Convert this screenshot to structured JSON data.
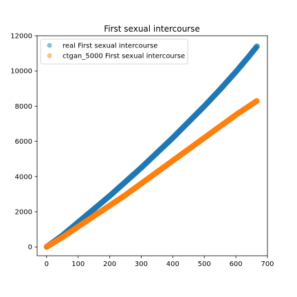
{
  "chart_data": {
    "type": "scatter",
    "title": "First sexual intercourse",
    "xlabel": "",
    "ylabel": "",
    "xlim": [
      -30,
      700
    ],
    "ylim": [
      -500,
      12000
    ],
    "x_ticks": [
      "0",
      "100",
      "200",
      "300",
      "400",
      "500",
      "600",
      "700"
    ],
    "y_ticks": [
      "0",
      "2000",
      "4000",
      "6000",
      "8000",
      "10000",
      "12000"
    ],
    "x_tick_values": [
      0,
      100,
      200,
      300,
      400,
      500,
      600,
      700
    ],
    "y_tick_values": [
      0,
      2000,
      4000,
      6000,
      8000,
      10000,
      12000
    ],
    "grid": false,
    "legend_position": "upper-left",
    "series": [
      {
        "name": "real First sexual intercourse",
        "color": "#1f77b4",
        "point_count": 668,
        "curve": [
          {
            "x": 0,
            "y": 0
          },
          {
            "x": 50,
            "y": 650
          },
          {
            "x": 100,
            "y": 1400
          },
          {
            "x": 150,
            "y": 2150
          },
          {
            "x": 200,
            "y": 2900
          },
          {
            "x": 250,
            "y": 3700
          },
          {
            "x": 300,
            "y": 4500
          },
          {
            "x": 350,
            "y": 5350
          },
          {
            "x": 400,
            "y": 6200
          },
          {
            "x": 450,
            "y": 7100
          },
          {
            "x": 500,
            "y": 8000
          },
          {
            "x": 550,
            "y": 8950
          },
          {
            "x": 600,
            "y": 9950
          },
          {
            "x": 640,
            "y": 10800
          },
          {
            "x": 667,
            "y": 11400
          }
        ]
      },
      {
        "name": "ctgan_5000 First sexual intercourse",
        "color": "#ff7f0e",
        "point_count": 668,
        "curve": [
          {
            "x": 0,
            "y": 0
          },
          {
            "x": 50,
            "y": 550
          },
          {
            "x": 100,
            "y": 1150
          },
          {
            "x": 150,
            "y": 1750
          },
          {
            "x": 200,
            "y": 2350
          },
          {
            "x": 250,
            "y": 2950
          },
          {
            "x": 300,
            "y": 3600
          },
          {
            "x": 350,
            "y": 4250
          },
          {
            "x": 400,
            "y": 4900
          },
          {
            "x": 450,
            "y": 5550
          },
          {
            "x": 500,
            "y": 6200
          },
          {
            "x": 550,
            "y": 6850
          },
          {
            "x": 600,
            "y": 7500
          },
          {
            "x": 667,
            "y": 8300
          }
        ]
      }
    ]
  }
}
